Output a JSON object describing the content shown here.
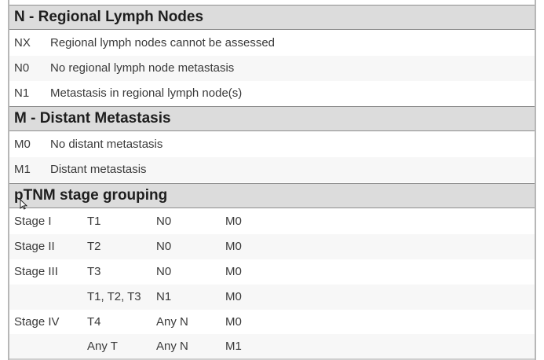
{
  "sections": {
    "n": {
      "title": "N - Regional Lymph Nodes",
      "rows": [
        {
          "code": "NX",
          "desc": "Regional lymph nodes cannot be assessed"
        },
        {
          "code": "N0",
          "desc": "No regional lymph node metastasis"
        },
        {
          "code": "N1",
          "desc": "Metastasis in regional lymph node(s)"
        }
      ]
    },
    "m": {
      "title": "M - Distant Metastasis",
      "rows": [
        {
          "code": "M0",
          "desc": "No distant metastasis"
        },
        {
          "code": "M1",
          "desc": "Distant metastasis"
        }
      ]
    },
    "ptnm": {
      "title": "pTNM stage grouping",
      "rows": [
        {
          "stage": "Stage I",
          "t": "T1",
          "n": "N0",
          "m": "M0"
        },
        {
          "stage": "Stage II",
          "t": "T2",
          "n": "N0",
          "m": "M0"
        },
        {
          "stage": "Stage III",
          "t": "T3",
          "n": "N0",
          "m": "M0"
        },
        {
          "stage": "",
          "t": "T1, T2, T3",
          "n": "N1",
          "m": "M0"
        },
        {
          "stage": "Stage IV",
          "t": "T4",
          "n": "Any N",
          "m": "M0"
        },
        {
          "stage": "",
          "t": "Any T",
          "n": "Any N",
          "m": "M1"
        }
      ]
    }
  },
  "colors": {
    "header_bg": "#dcdcdc",
    "border": "#8e8e8e",
    "text": "#3a3a3a"
  }
}
